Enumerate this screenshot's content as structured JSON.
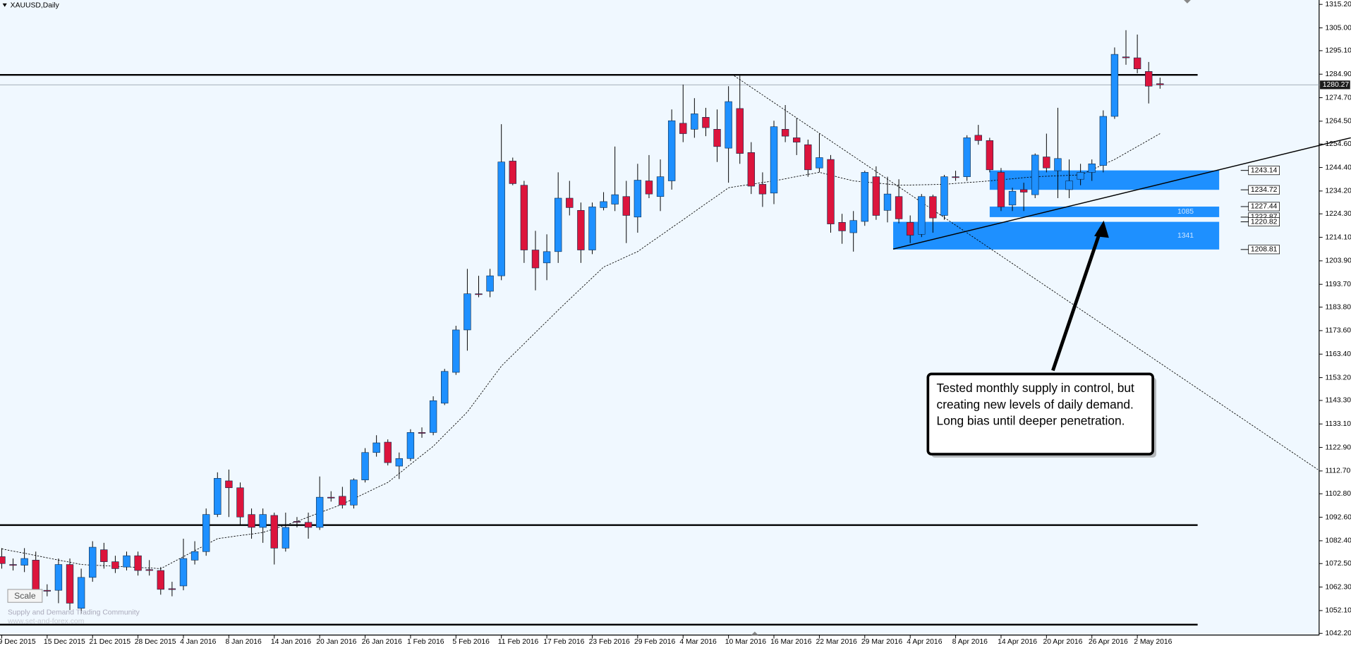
{
  "chart_data": {
    "type": "candlestick",
    "title": "XAUUSD,Daily",
    "categories": [
      "9 Dec 2015",
      null,
      null,
      null,
      "15 Dec 2015",
      null,
      null,
      null,
      "21 Dec 2015",
      null,
      null,
      null,
      "28 Dec 2015",
      null,
      null,
      null,
      "4 Jan 2016",
      null,
      null,
      null,
      "8 Jan 2016",
      null,
      null,
      null,
      "14 Jan 2016",
      null,
      null,
      null,
      "20 Jan 2016",
      null,
      null,
      null,
      "26 Jan 2016",
      null,
      null,
      null,
      "1 Feb 2016",
      null,
      null,
      null,
      "5 Feb 2016",
      null,
      null,
      null,
      "11 Feb 2016",
      null,
      null,
      null,
      "17 Feb 2016",
      null,
      null,
      null,
      "23 Feb 2016",
      null,
      null,
      null,
      "29 Feb 2016",
      null,
      null,
      null,
      "4 Mar 2016",
      null,
      null,
      null,
      "10 Mar 2016",
      null,
      null,
      null,
      "16 Mar 2016",
      null,
      null,
      null,
      "22 Mar 2016",
      null,
      null,
      null,
      "29 Mar 2016",
      null,
      null,
      null,
      "4 Apr 2016",
      null,
      null,
      null,
      "8 Apr 2016",
      null,
      null,
      null,
      "14 Apr 2016",
      null,
      null,
      null,
      "20 Apr 2016",
      null,
      null,
      null,
      "26 Apr 2016",
      null,
      null,
      null,
      "2 May 2016",
      null,
      null
    ],
    "open": [
      1075.5,
      1072.1,
      1071.8,
      1074.0,
      1060.9,
      1060.9,
      1072.1,
      1053.1,
      1066.5,
      1078.5,
      1073.3,
      1071.0,
      1075.9,
      1069.9,
      1069.5,
      1061.6,
      1062.8,
      1074.0,
      1077.7,
      1093.8,
      1108.4,
      1105.4,
      1093.8,
      1088.2,
      1093.4,
      1079.2,
      1090.8,
      1090.4,
      1088.2,
      1101.3,
      1101.7,
      1097.9,
      1108.8,
      1120.7,
      1125.2,
      1114.8,
      1118.1,
      1129.4,
      1129.4,
      1142.1,
      1155.5,
      1173.9,
      1189.6,
      1190.7,
      1197.4,
      1247.2,
      1236.7,
      1208.6,
      1203.0,
      1207.9,
      1231.1,
      1225.8,
      1208.6,
      1227.0,
      1228.5,
      1231.8,
      1222.9,
      1238.6,
      1231.8,
      1238.6,
      1263.6,
      1261.0,
      1266.2,
      1261.0,
      1252.8,
      1270.0,
      1250.9,
      1237.1,
      1233.3,
      1261.0,
      1257.3,
      1254.3,
      1244.2,
      1247.9,
      1220.6,
      1216.1,
      1221.0,
      1240.4,
      1225.8,
      1231.8,
      1220.6,
      1215.4,
      1231.8,
      1223.6,
      1240.4,
      1240.4,
      1258.4,
      1256.1,
      1242.3,
      1228.1,
      1234.8,
      1232.6,
      1249.0,
      1243.0,
      1234.8,
      1239.3,
      1242.3,
      1245.3,
      1266.6,
      1292.4,
      1292.0,
      1286.1,
      1280.8
    ],
    "high": [
      1079.2,
      1074.7,
      1079.2,
      1077.7,
      1063.5,
      1074.7,
      1074.7,
      1070.3,
      1082.2,
      1081.5,
      1075.9,
      1077.7,
      1077.7,
      1074.0,
      1071.0,
      1064.6,
      1083.3,
      1082.2,
      1096.4,
      1112.1,
      1113.3,
      1107.7,
      1096.4,
      1096.4,
      1094.6,
      1094.6,
      1092.7,
      1094.6,
      1110.3,
      1103.9,
      1105.8,
      1109.5,
      1122.6,
      1128.2,
      1126.4,
      1120.7,
      1130.8,
      1131.6,
      1145.1,
      1157.0,
      1175.7,
      1200.4,
      1197.4,
      1200.4,
      1263.2,
      1248.7,
      1238.6,
      1216.9,
      1215.4,
      1242.3,
      1238.6,
      1229.2,
      1229.2,
      1233.7,
      1253.5,
      1238.6,
      1246.0,
      1249.8,
      1247.9,
      1269.6,
      1280.4,
      1274.5,
      1270.3,
      1269.6,
      1279.7,
      1284.2,
      1255.4,
      1242.3,
      1264.7,
      1271.5,
      1265.9,
      1256.5,
      1259.1,
      1249.8,
      1224.3,
      1225.5,
      1243.0,
      1244.9,
      1240.4,
      1239.3,
      1223.6,
      1232.9,
      1232.6,
      1241.2,
      1243.0,
      1258.4,
      1262.9,
      1257.3,
      1244.2,
      1235.6,
      1237.8,
      1250.5,
      1259.1,
      1270.3,
      1247.9,
      1246.0,
      1247.9,
      1269.2,
      1296.5,
      1304.0,
      1302.1,
      1290.2,
      1283.4
    ],
    "low": [
      1070.3,
      1069.5,
      1068.8,
      1059.0,
      1058.3,
      1055.3,
      1052.3,
      1050.8,
      1064.6,
      1070.3,
      1068.4,
      1069.5,
      1067.3,
      1067.3,
      1059.0,
      1058.3,
      1060.9,
      1072.1,
      1075.9,
      1092.7,
      1092.7,
      1089.0,
      1083.3,
      1081.5,
      1072.1,
      1077.7,
      1088.2,
      1083.3,
      1087.1,
      1099.4,
      1096.4,
      1096.4,
      1107.7,
      1118.9,
      1115.1,
      1109.2,
      1117.0,
      1127.1,
      1128.2,
      1141.3,
      1154.4,
      1164.9,
      1188.1,
      1188.1,
      1195.5,
      1236.7,
      1203.0,
      1191.1,
      1195.5,
      1203.0,
      1223.6,
      1203.0,
      1206.8,
      1225.8,
      1225.5,
      1211.6,
      1216.1,
      1231.1,
      1225.5,
      1234.8,
      1255.4,
      1257.3,
      1258.0,
      1246.8,
      1237.8,
      1246.0,
      1232.9,
      1227.3,
      1228.5,
      1255.4,
      1249.8,
      1240.4,
      1242.3,
      1216.1,
      1211.3,
      1207.9,
      1219.1,
      1221.7,
      1220.6,
      1220.2,
      1211.6,
      1214.2,
      1216.1,
      1221.7,
      1238.6,
      1238.6,
      1254.3,
      1242.3,
      1225.5,
      1225.5,
      1225.5,
      1231.1,
      1242.3,
      1231.1,
      1231.1,
      1236.7,
      1238.6,
      1242.3,
      1265.5,
      1289.0,
      1285.3,
      1272.2,
      1278.6
    ],
    "close": [
      1072.5,
      1071.8,
      1074.7,
      1060.5,
      1060.5,
      1072.1,
      1055.3,
      1066.5,
      1079.6,
      1073.3,
      1070.3,
      1075.9,
      1069.5,
      1069.5,
      1061.3,
      1061.3,
      1074.7,
      1077.7,
      1093.8,
      1109.5,
      1105.4,
      1092.7,
      1088.2,
      1093.8,
      1079.2,
      1088.2,
      1090.6,
      1088.2,
      1101.3,
      1101.1,
      1097.9,
      1108.8,
      1120.7,
      1124.9,
      1116.3,
      1118.1,
      1129.4,
      1129.2,
      1143.2,
      1155.9,
      1173.9,
      1189.6,
      1189.4,
      1197.4,
      1246.8,
      1237.4,
      1208.6,
      1200.8,
      1207.9,
      1231.1,
      1227.0,
      1208.6,
      1227.3,
      1229.6,
      1232.6,
      1223.6,
      1238.9,
      1232.9,
      1240.4,
      1264.7,
      1259.1,
      1267.7,
      1261.7,
      1253.5,
      1273.0,
      1250.5,
      1236.3,
      1232.9,
      1262.1,
      1258.0,
      1255.4,
      1243.4,
      1248.7,
      1219.9,
      1216.9,
      1221.4,
      1242.3,
      1223.6,
      1232.9,
      1222.1,
      1215.0,
      1231.8,
      1222.5,
      1240.4,
      1240.2,
      1257.3,
      1256.1,
      1243.4,
      1227.3,
      1234.1,
      1233.7,
      1249.8,
      1244.2,
      1248.3,
      1238.6,
      1242.3,
      1246.0,
      1266.6,
      1293.5,
      1292.0,
      1287.2,
      1279.7,
      1280.3
    ],
    "up_color": "#1e90ff",
    "down_color": "#dc143c",
    "moving_average": {
      "color": "#000000",
      "values": [
        1078.9,
        1077.9,
        1077.0,
        1076.0,
        1075.0,
        1074.0,
        1073.1,
        1072.1,
        1071.8,
        1071.6,
        1071.3,
        1071.1,
        1070.8,
        1070.6,
        1070.3,
        1072.9,
        1075.5,
        1078.1,
        1080.7,
        1083.3,
        1084.0,
        1084.7,
        1085.3,
        1086.0,
        1087.6,
        1089.2,
        1090.8,
        1092.7,
        1094.6,
        1096.4,
        1098.3,
        1100.7,
        1103.0,
        1105.4,
        1107.7,
        1111.6,
        1115.6,
        1119.5,
        1123.4,
        1128.4,
        1133.3,
        1138.3,
        1144.9,
        1151.6,
        1158.2,
        1163.1,
        1167.9,
        1172.8,
        1177.6,
        1182.5,
        1187.2,
        1191.9,
        1196.5,
        1201.2,
        1203.4,
        1205.7,
        1207.9,
        1211.4,
        1214.8,
        1218.3,
        1221.7,
        1225.2,
        1228.7,
        1232.1,
        1235.6,
        1236.4,
        1237.1,
        1237.9,
        1238.6,
        1239.5,
        1240.5,
        1241.4,
        1242.3,
        1241.1,
        1239.8,
        1238.6,
        1238.1,
        1237.7,
        1237.2,
        1236.7,
        1236.8,
        1236.9,
        1237.0,
        1237.1,
        1237.5,
        1237.9,
        1238.2,
        1238.6,
        1239.1,
        1239.5,
        1240.0,
        1240.4,
        1240.6,
        1240.8,
        1241.0,
        1241.2,
        1243.4,
        1245.7,
        1247.9,
        1250.7,
        1253.5,
        1256.3,
        1259.1
      ]
    },
    "ylim": [
      1037.5,
      1317.1
    ],
    "yticks": [
      {
        "value": 1315.2,
        "label": "1315.20"
      },
      {
        "value": 1305,
        "label": "1305.00"
      },
      {
        "value": 1295.1,
        "label": "1295.10"
      },
      {
        "value": 1284.9,
        "label": "1284.90"
      },
      {
        "value": 1274.7,
        "label": "1274.70"
      },
      {
        "value": 1264.5,
        "label": "1264.50"
      },
      {
        "value": 1254.6,
        "label": "1254.60"
      },
      {
        "value": 1244.4,
        "label": "1244.40"
      },
      {
        "value": 1234.2,
        "label": "1234.20"
      },
      {
        "value": 1224.3,
        "label": "1224.30"
      },
      {
        "value": 1214.1,
        "label": "1214.10"
      },
      {
        "value": 1203.9,
        "label": "1203.90"
      },
      {
        "value": 1193.7,
        "label": "1193.70"
      },
      {
        "value": 1183.8,
        "label": "1183.80"
      },
      {
        "value": 1173.6,
        "label": "1173.60"
      },
      {
        "value": 1163.4,
        "label": "1163.40"
      },
      {
        "value": 1153.2,
        "label": "1153.20"
      },
      {
        "value": 1143.3,
        "label": "1143.30"
      },
      {
        "value": 1133.1,
        "label": "1133.10"
      },
      {
        "value": 1122.9,
        "label": "1122.90"
      },
      {
        "value": 1112.7,
        "label": "1112.70"
      },
      {
        "value": 1102.8,
        "label": "1102.80"
      },
      {
        "value": 1092.6,
        "label": "1092.60"
      },
      {
        "value": 1082.4,
        "label": "1082.40"
      },
      {
        "value": 1072.5,
        "label": "1072.50"
      },
      {
        "value": 1062.3,
        "label": "1062.30"
      },
      {
        "value": 1052.1,
        "label": "1052.10"
      },
      {
        "value": 1042.2,
        "label": "1042.20"
      }
    ],
    "last_price": {
      "value": 1280.27,
      "label": "1280.27"
    },
    "levels": [
      1284.6,
      1089.2,
      1046.0
    ],
    "trendlines": [
      {
        "style": "dashed",
        "points": [
          [
            64.5,
            1284.2
          ],
          [
            115.9,
            1113.3
          ]
        ]
      },
      {
        "style": "solid",
        "points": [
          [
            78.5,
            1209.0
          ],
          [
            118.8,
            1257.3
          ]
        ]
      }
    ],
    "zones": [
      {
        "start": 87,
        "top": {
          "value": 1243.14,
          "label": "1243.14"
        },
        "bottom": {
          "value": 1234.72,
          "label": "1234.72"
        }
      },
      {
        "start": 87,
        "top": {
          "value": 1227.44,
          "label": "1227.44"
        },
        "bottom": {
          "value": 1222.87,
          "label": "1222.87"
        },
        "count": 1085
      },
      {
        "start": 78.5,
        "top": {
          "value": 1220.82,
          "label": "1220.82"
        },
        "bottom": {
          "value": 1208.81,
          "label": "1208.81"
        },
        "count": 1341
      }
    ],
    "annotation": "Tested monthly supply in control, but creating new levels of daily demand. Long bias until deeper penetration.",
    "scale_button": "Scale",
    "watermark": [
      "Supply and Demand Trading Community",
      "www.set-and-forex.com"
    ]
  }
}
